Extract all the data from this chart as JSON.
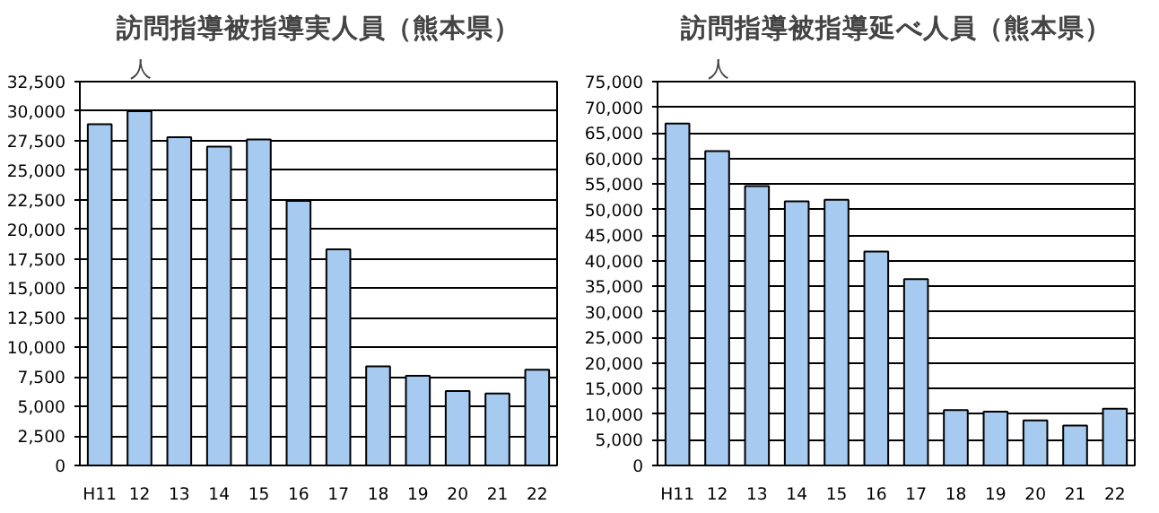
{
  "chart_data": [
    {
      "type": "bar",
      "title": "訪問指導被指導実人員（熊本県）",
      "ylabel": "人",
      "categories": [
        "H11",
        "12",
        "13",
        "14",
        "15",
        "16",
        "17",
        "18",
        "19",
        "20",
        "21",
        "22"
      ],
      "series": [
        {
          "color": "#a6caf0",
          "values": [
            28900,
            30000,
            27800,
            27000,
            27600,
            22400,
            18300,
            8400,
            7600,
            6300,
            6100,
            8100
          ]
        }
      ],
      "ylim": [
        0,
        32500
      ],
      "yticks": [
        {
          "value": 0,
          "label": "0"
        },
        {
          "value": 2500,
          "label": "2,500"
        },
        {
          "value": 5000,
          "label": "5,000"
        },
        {
          "value": 7500,
          "label": "7,500"
        },
        {
          "value": 10000,
          "label": "10,000"
        },
        {
          "value": 12500,
          "label": "12,500"
        },
        {
          "value": 15000,
          "label": "15,000"
        },
        {
          "value": 17500,
          "label": "17,500"
        },
        {
          "value": 20000,
          "label": "20,000"
        },
        {
          "value": 22500,
          "label": "22,500"
        },
        {
          "value": 25000,
          "label": "25,000"
        },
        {
          "value": 27500,
          "label": "27,500"
        },
        {
          "value": 30000,
          "label": "30,000"
        },
        {
          "value": 32500,
          "label": "32,500"
        }
      ],
      "grid": "y"
    },
    {
      "type": "bar",
      "title": "訪問指導被指導延べ人員（熊本県）",
      "ylabel": "人",
      "categories": [
        "H11",
        "12",
        "13",
        "14",
        "15",
        "16",
        "17",
        "18",
        "19",
        "20",
        "21",
        "22"
      ],
      "series": [
        {
          "color": "#a6caf0",
          "values": [
            66800,
            61400,
            54600,
            51600,
            51900,
            41800,
            36400,
            10800,
            10500,
            8800,
            7800,
            11100
          ]
        }
      ],
      "ylim": [
        0,
        75000
      ],
      "yticks": [
        {
          "value": 0,
          "label": "0"
        },
        {
          "value": 5000,
          "label": "5,000"
        },
        {
          "value": 10000,
          "label": "10,000"
        },
        {
          "value": 15000,
          "label": "15,000"
        },
        {
          "value": 20000,
          "label": "20,000"
        },
        {
          "value": 25000,
          "label": "25,000"
        },
        {
          "value": 30000,
          "label": "30,000"
        },
        {
          "value": 35000,
          "label": "35,000"
        },
        {
          "value": 40000,
          "label": "40,000"
        },
        {
          "value": 45000,
          "label": "45,000"
        },
        {
          "value": 50000,
          "label": "50,000"
        },
        {
          "value": 55000,
          "label": "55,000"
        },
        {
          "value": 60000,
          "label": "60,000"
        },
        {
          "value": 65000,
          "label": "65,000"
        },
        {
          "value": 70000,
          "label": "70,000"
        },
        {
          "value": 75000,
          "label": "75,000"
        }
      ],
      "grid": "y"
    }
  ]
}
